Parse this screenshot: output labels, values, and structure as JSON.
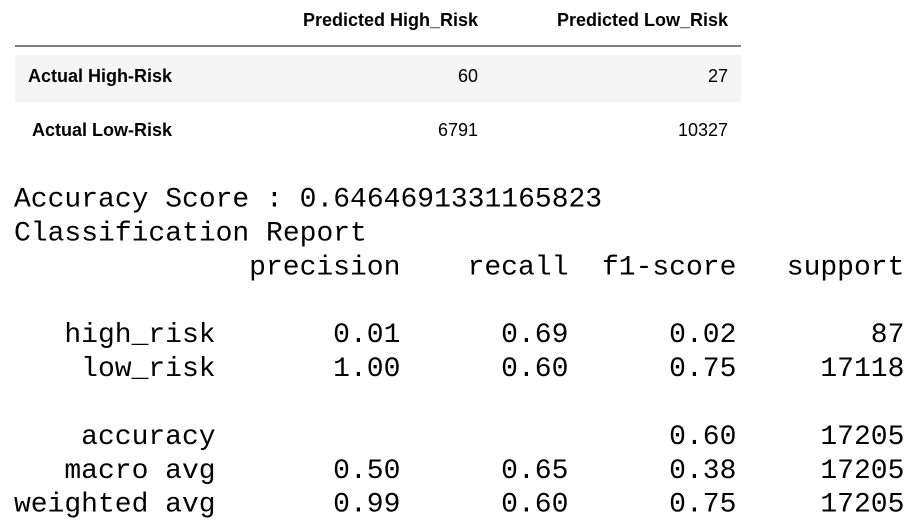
{
  "dataframe": {
    "columns": [
      "Predicted High_Risk",
      "Predicted Low_Risk"
    ],
    "rows": [
      {
        "index": "Actual High-Risk",
        "values": [
          "60",
          "27"
        ]
      },
      {
        "index": "Actual Low-Risk",
        "values": [
          "6791",
          "10327"
        ]
      }
    ]
  },
  "accuracy_line": "Accuracy Score : 0.6464691331165823",
  "report": {
    "title": "Classification Report",
    "columns": [
      "precision",
      "recall",
      "f1-score",
      "support"
    ],
    "groups": [
      [
        {
          "label": "high_risk",
          "values": [
            "0.01",
            "0.69",
            "0.02",
            "87"
          ]
        },
        {
          "label": "low_risk",
          "values": [
            "1.00",
            "0.60",
            "0.75",
            "17118"
          ]
        }
      ],
      [
        {
          "label": "accuracy",
          "values": [
            null,
            null,
            "0.60",
            "17205"
          ]
        },
        {
          "label": "macro avg",
          "values": [
            "0.50",
            "0.65",
            "0.38",
            "17205"
          ]
        },
        {
          "label": "weighted avg",
          "values": [
            "0.99",
            "0.60",
            "0.75",
            "17205"
          ]
        }
      ]
    ]
  }
}
